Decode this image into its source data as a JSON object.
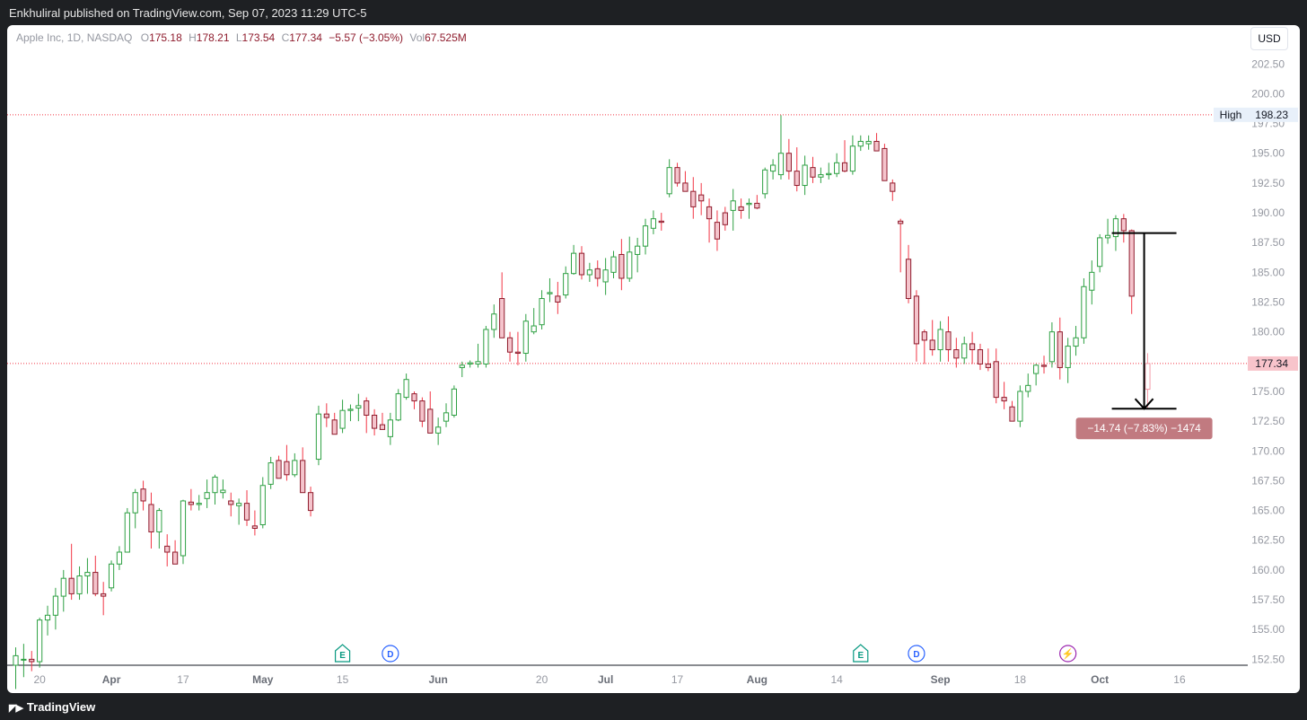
{
  "header": {
    "publisher_text": "Enkhuliral published on TradingView.com, Sep 07, 2023 11:29 UTC-5"
  },
  "legend": {
    "symbol": "Apple Inc, 1D, NASDAQ",
    "o_label": "O",
    "o_value": "175.18",
    "h_label": "H",
    "h_value": "178.21",
    "l_label": "L",
    "l_value": "173.54",
    "c_label": "C",
    "c_value": "177.34",
    "change": "−5.57 (−3.05%)",
    "vol_label": "Vol",
    "vol_value": "67.525M"
  },
  "currency": "USD",
  "footer": {
    "brand": "TradingView"
  },
  "colors": {
    "up": "#089981",
    "down": "#f23645",
    "up_hollow_stroke": "#2ea043",
    "down_fill": "#f5c4cc",
    "measure_box": "#c17a80"
  },
  "chart_data": {
    "type": "candlestick",
    "symbol": "Apple Inc",
    "interval": "1D",
    "exchange": "NASDAQ",
    "ylim": [
      152,
      203.5
    ],
    "y_ticks": [
      "152.50",
      "155.00",
      "157.50",
      "160.00",
      "162.50",
      "165.00",
      "167.50",
      "170.00",
      "172.50",
      "175.00",
      "177.50",
      "180.00",
      "182.50",
      "185.00",
      "187.50",
      "190.00",
      "192.50",
      "195.00",
      "197.50",
      "200.00",
      "202.50"
    ],
    "x_ticks": [
      {
        "label": "20",
        "i": 3
      },
      {
        "label": "Apr",
        "i": 12
      },
      {
        "label": "17",
        "i": 21
      },
      {
        "label": "May",
        "i": 31
      },
      {
        "label": "15",
        "i": 41
      },
      {
        "label": "Jun",
        "i": 53
      },
      {
        "label": "20",
        "i": 66
      },
      {
        "label": "Jul",
        "i": 74
      },
      {
        "label": "17",
        "i": 83
      },
      {
        "label": "Aug",
        "i": 93
      },
      {
        "label": "14",
        "i": 103
      },
      {
        "label": "Sep",
        "i": 116
      },
      {
        "label": "18",
        "i": 126
      },
      {
        "label": "Oct",
        "i": 136
      },
      {
        "label": "16",
        "i": 146
      }
    ],
    "bold_x_ticks": [
      "Apr",
      "May",
      "Jun",
      "Jul",
      "Aug",
      "Sep",
      "Oct"
    ],
    "hlines": [
      {
        "label": "High",
        "value": 198.23,
        "price": "198.23"
      },
      {
        "label": "",
        "value": 177.34,
        "price": "177.34"
      }
    ],
    "candles": [
      [
        152,
        153.5,
        150,
        152.8
      ],
      [
        152.5,
        153.8,
        151,
        152.5
      ],
      [
        152.5,
        153.2,
        151.5,
        152.3
      ],
      [
        152.3,
        156,
        151.8,
        155.8
      ],
      [
        155.8,
        157,
        154.5,
        156.2
      ],
      [
        156.2,
        158.5,
        155,
        157.8
      ],
      [
        157.8,
        160,
        156.5,
        159.3
      ],
      [
        159.3,
        162.2,
        157.5,
        158
      ],
      [
        158,
        160.3,
        157.5,
        159.5
      ],
      [
        159.5,
        161,
        158,
        159.8
      ],
      [
        159.8,
        161.2,
        157.8,
        158
      ],
      [
        158,
        159,
        156.2,
        157.8
      ],
      [
        158.5,
        160.8,
        158.2,
        160.5
      ],
      [
        160.5,
        162,
        160,
        161.5
      ],
      [
        161.5,
        165.2,
        161.5,
        164.8
      ],
      [
        164.8,
        166.8,
        163.5,
        166.5
      ],
      [
        166.8,
        167.5,
        165,
        165.8
      ],
      [
        165.5,
        166.5,
        161.8,
        163.2
      ],
      [
        163.2,
        165.2,
        161.8,
        165
      ],
      [
        162,
        163,
        160.3,
        161.5
      ],
      [
        161.5,
        162.5,
        160.8,
        160.5
      ],
      [
        161.2,
        165.9,
        160.5,
        165.8
      ],
      [
        165.7,
        166.8,
        165,
        165.5
      ],
      [
        165.5,
        166.3,
        165,
        165.6
      ],
      [
        166,
        167.6,
        165.2,
        166.5
      ],
      [
        166.5,
        168,
        165.5,
        167.8
      ],
      [
        166.5,
        167.6,
        166,
        166.7
      ],
      [
        165.8,
        166.5,
        164.5,
        165.5
      ],
      [
        165.4,
        166,
        163.8,
        165.6
      ],
      [
        165.6,
        166.7,
        163.7,
        164.2
      ],
      [
        163.7,
        165,
        162.9,
        163.5
      ],
      [
        163.8,
        167.8,
        163.5,
        167.1
      ],
      [
        167.2,
        169.5,
        166.8,
        169
      ],
      [
        169.2,
        169.6,
        168,
        167.7
      ],
      [
        169.1,
        170.5,
        167.5,
        168
      ],
      [
        168,
        169.8,
        167.8,
        169.2
      ],
      [
        169.2,
        170.3,
        166.5,
        166.5
      ],
      [
        166.5,
        167,
        164.5,
        165
      ],
      [
        169.3,
        173.8,
        168.8,
        173.1
      ],
      [
        173.1,
        174,
        172,
        172.8
      ],
      [
        172.6,
        173.2,
        171.8,
        171.4
      ],
      [
        171.9,
        174.3,
        171.5,
        173.4
      ],
      [
        173.4,
        173.9,
        172.5,
        173.5
      ],
      [
        173.6,
        174.8,
        172.5,
        173.8
      ],
      [
        174.2,
        174.5,
        171.5,
        173
      ],
      [
        173,
        173.5,
        171.3,
        171.9
      ],
      [
        172.2,
        173.2,
        171.8,
        171.8
      ],
      [
        171.2,
        173.2,
        170.5,
        172.6
      ],
      [
        172.6,
        175.2,
        172.5,
        174.8
      ],
      [
        174.5,
        176.5,
        174.3,
        176
      ],
      [
        174.8,
        175,
        173.5,
        174.2
      ],
      [
        174.2,
        174.5,
        172,
        172.5
      ],
      [
        173.5,
        175,
        172,
        171.5
      ],
      [
        171.5,
        172.8,
        170.5,
        172
      ],
      [
        172.5,
        174,
        172,
        173.2
      ],
      [
        173,
        175.5,
        172.8,
        175.2
      ],
      [
        177,
        177.5,
        176.2,
        177.2
      ],
      [
        177.3,
        177.6,
        177,
        177.4
      ],
      [
        177.3,
        179,
        177,
        177.5
      ],
      [
        177.3,
        180.5,
        177,
        180.2
      ],
      [
        180.2,
        182.3,
        179.5,
        181.5
      ],
      [
        182.8,
        185,
        179.5,
        179.5
      ],
      [
        179.5,
        180,
        177.5,
        178.3
      ],
      [
        178.3,
        180,
        177.2,
        178.2
      ],
      [
        178.2,
        181.5,
        177.5,
        180.9
      ],
      [
        180,
        182,
        179.8,
        180.5
      ],
      [
        180.6,
        183.5,
        180.2,
        182.8
      ],
      [
        183.2,
        184.5,
        182.5,
        183.3
      ],
      [
        183,
        184.2,
        181.5,
        182.5
      ],
      [
        183.1,
        185.5,
        182.8,
        184.9
      ],
      [
        184.9,
        187.3,
        184.8,
        186.6
      ],
      [
        186.6,
        187.2,
        184.4,
        184.8
      ],
      [
        184.8,
        185.8,
        184.2,
        185.2
      ],
      [
        185.3,
        186,
        183.8,
        184.5
      ],
      [
        184.2,
        186.2,
        183.1,
        185.2
      ],
      [
        185,
        186.8,
        184.5,
        186.3
      ],
      [
        186.5,
        187.8,
        183.5,
        184.5
      ],
      [
        184.5,
        188,
        184.2,
        186.7
      ],
      [
        186.5,
        187.9,
        185,
        187.2
      ],
      [
        187.2,
        189.5,
        186.5,
        188.9
      ],
      [
        188.7,
        190.2,
        188.2,
        189.5
      ],
      [
        189.3,
        190,
        188.5,
        189.2
      ],
      [
        191.6,
        194.5,
        191.3,
        193.8
      ],
      [
        193.8,
        194.2,
        192.2,
        192.5
      ],
      [
        192.5,
        193.5,
        191.8,
        191.8
      ],
      [
        191.8,
        193,
        189.5,
        190.5
      ],
      [
        191.5,
        192.5,
        189.8,
        191
      ],
      [
        190.5,
        191.2,
        187.5,
        189.5
      ],
      [
        189.2,
        190.2,
        186.8,
        187.8
      ],
      [
        190,
        190.5,
        188.5,
        189
      ],
      [
        190.2,
        192,
        188.5,
        191
      ],
      [
        190.5,
        191.2,
        189.5,
        190.2
      ],
      [
        190.7,
        191.2,
        189.5,
        190.8
      ],
      [
        190.8,
        191.5,
        190.3,
        190.4
      ],
      [
        191.6,
        193.8,
        191.2,
        193.6
      ],
      [
        193.5,
        194.5,
        192.8,
        194
      ],
      [
        193.2,
        198.2,
        192.8,
        195
      ],
      [
        195,
        196.2,
        192.8,
        193.5
      ],
      [
        193.5,
        195.5,
        191.8,
        192.3
      ],
      [
        192.3,
        194.8,
        191.5,
        194
      ],
      [
        193.8,
        194.7,
        192.5,
        193
      ],
      [
        193,
        193.8,
        192.5,
        193.2
      ],
      [
        193.2,
        194.2,
        192.8,
        193.3
      ],
      [
        193.3,
        195,
        193,
        194.2
      ],
      [
        194.2,
        196.1,
        193.4,
        193.5
      ],
      [
        193.5,
        196.5,
        193.2,
        195.6
      ],
      [
        195.6,
        196.5,
        195.2,
        196
      ],
      [
        195.8,
        196.5,
        195.3,
        196
      ],
      [
        196,
        196.7,
        195.2,
        195.2
      ],
      [
        195.4,
        195.8,
        194.3,
        192.7
      ],
      [
        192.5,
        192.8,
        191,
        191.8
      ],
      [
        189.3,
        189.5,
        185,
        189.1
      ],
      [
        186.1,
        187.3,
        182.4,
        182.8
      ],
      [
        183,
        183.5,
        177.5,
        179
      ],
      [
        180,
        180.2,
        177.3,
        179.3
      ],
      [
        179.3,
        181,
        178,
        178.5
      ],
      [
        178.5,
        180.9,
        177.5,
        180.2
      ],
      [
        180,
        181.3,
        177.5,
        178.5
      ],
      [
        178.5,
        179.5,
        177,
        177.8
      ],
      [
        177.8,
        179.6,
        177.3,
        179
      ],
      [
        179,
        180,
        177.3,
        178.5
      ],
      [
        178.5,
        179,
        176.8,
        177.3
      ],
      [
        177.3,
        178.6,
        176.7,
        177
      ],
      [
        177.5,
        178.6,
        174,
        174.5
      ],
      [
        174.5,
        175.8,
        173.5,
        174.2
      ],
      [
        173.7,
        174.2,
        172.5,
        172.5
      ],
      [
        172.5,
        175.5,
        172,
        175
      ],
      [
        175,
        176.5,
        174.5,
        175.5
      ],
      [
        176.5,
        177.3,
        175.5,
        177.2
      ],
      [
        177.2,
        178,
        176.5,
        177.1
      ],
      [
        177.5,
        180.8,
        177,
        180
      ],
      [
        180,
        181.2,
        176,
        177
      ],
      [
        177,
        179.5,
        175.7,
        178.8
      ],
      [
        178.8,
        180.5,
        178,
        179.5
      ],
      [
        179.5,
        184.5,
        179,
        183.8
      ],
      [
        183.5,
        186,
        182.3,
        185
      ],
      [
        185.5,
        188.2,
        185,
        187.9
      ],
      [
        187.9,
        189.5,
        187.4,
        188.1
      ],
      [
        188,
        189.8,
        186.8,
        189.5
      ],
      [
        189.5,
        189.9,
        187.5,
        188.5
      ],
      [
        188.5,
        188.6,
        181.5,
        183
      ],
      [
        null,
        null,
        null,
        null
      ],
      [
        175.18,
        178.21,
        173.54,
        177.34
      ]
    ],
    "earnings_markers": [
      {
        "label": "E",
        "i": 41
      },
      {
        "label": "D",
        "i": 47
      },
      {
        "label": "E",
        "i": 106
      },
      {
        "label": "D",
        "i": 113
      }
    ],
    "split_marker": {
      "label": "⚡",
      "i": 132
    },
    "measure": {
      "label": "−14.74 (−7.83%) −1474",
      "from_price": 188.3,
      "to_price": 173.55,
      "from_i": 141,
      "to_i": 141
    }
  }
}
